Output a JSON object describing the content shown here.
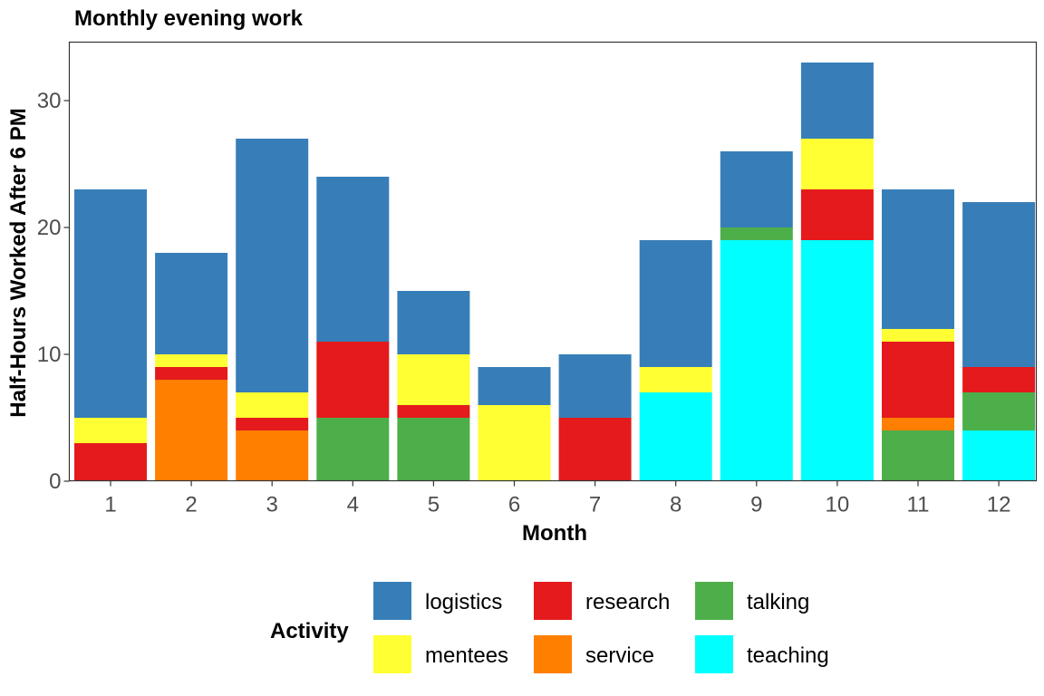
{
  "chart_data": {
    "type": "bar",
    "stacked": true,
    "title": "Monthly evening work",
    "xlabel": "Month",
    "ylabel": "Half-Hours Worked After 6 PM",
    "categories": [
      "1",
      "2",
      "3",
      "4",
      "5",
      "6",
      "7",
      "8",
      "9",
      "10",
      "11",
      "12"
    ],
    "ylim": [
      0,
      34.5
    ],
    "yticks": [
      0,
      10,
      20,
      30
    ],
    "grid": false,
    "legend": {
      "title": "Activity",
      "position": "bottom"
    },
    "stack_order": [
      "teaching",
      "talking",
      "service",
      "research",
      "mentees",
      "logistics"
    ],
    "series": [
      {
        "name": "logistics",
        "color": "#377EB8",
        "values": [
          18,
          8,
          20,
          13,
          5,
          3,
          5,
          10,
          6,
          6,
          11,
          13
        ]
      },
      {
        "name": "mentees",
        "color": "#FFFF33",
        "values": [
          2,
          1,
          2,
          0,
          4,
          6,
          0,
          2,
          0,
          4,
          1,
          0
        ]
      },
      {
        "name": "research",
        "color": "#E41A1C",
        "values": [
          3,
          1,
          1,
          6,
          1,
          0,
          5,
          0,
          0,
          4,
          6,
          2
        ]
      },
      {
        "name": "service",
        "color": "#FF7F00",
        "values": [
          0,
          8,
          4,
          0,
          0,
          0,
          0,
          0,
          0,
          0,
          1,
          0
        ]
      },
      {
        "name": "talking",
        "color": "#4DAF4A",
        "values": [
          0,
          0,
          0,
          5,
          5,
          0,
          0,
          0,
          1,
          0,
          4,
          3
        ]
      },
      {
        "name": "teaching",
        "color": "#00FFFF",
        "values": [
          0,
          0,
          0,
          0,
          0,
          0,
          0,
          7,
          19,
          19,
          0,
          4
        ]
      }
    ],
    "legend_order": [
      "logistics",
      "research",
      "talking",
      "mentees",
      "service",
      "teaching"
    ]
  }
}
